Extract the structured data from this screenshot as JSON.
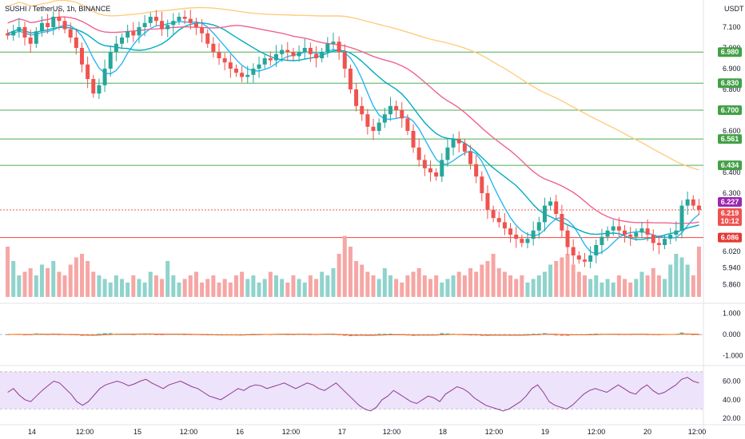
{
  "header": {
    "symbol": "SUSHI / TetherUS, 1h, BINANCE",
    "currency": "USDT"
  },
  "colors": {
    "up": "#26a69a",
    "down": "#ef5350",
    "vol_up": "#8fd3cc",
    "vol_down": "#f6a6a4",
    "ma_fast": "#29b6f6",
    "ma_mid": "#00acc1",
    "ma_slow": "#f06292",
    "ma_long": "#ffcc80",
    "support_line": "#4caf50",
    "resistance_line": "#f44336",
    "rsi_line": "#8e3a8e",
    "rsi_band": "#ede3fb"
  },
  "chart_data": [
    {
      "type": "candlestick",
      "x_labels": [
        "14",
        "12:00",
        "15",
        "12:00",
        "16",
        "12:00",
        "17",
        "12:00",
        "18",
        "12:00",
        "19",
        "12:00",
        "20",
        "12:00"
      ],
      "price_ticks": [
        "7.100",
        "7.000",
        "6.900",
        "6.800",
        "6.600",
        "6.400",
        "6.300",
        "6.020",
        "5.940",
        "5.860"
      ],
      "ylim": [
        5.8,
        7.2
      ],
      "horizontal_levels": [
        {
          "value": 6.98,
          "label": "6.980",
          "kind": "green"
        },
        {
          "value": 6.83,
          "label": "6.830",
          "kind": "green"
        },
        {
          "value": 6.7,
          "label": "6.700",
          "kind": "green"
        },
        {
          "value": 6.561,
          "label": "6.561",
          "kind": "green"
        },
        {
          "value": 6.434,
          "label": "6.434",
          "kind": "green"
        },
        {
          "value": 6.086,
          "label": "6.086",
          "kind": "red"
        }
      ],
      "current_price": {
        "value": 6.219,
        "label": "6.219",
        "countdown": "10:12"
      },
      "ma_tag": {
        "value": 6.227,
        "label": "6.227"
      },
      "price_path": [
        7.06,
        7.08,
        7.1,
        7.05,
        7.02,
        7.08,
        7.12,
        7.1,
        7.15,
        7.13,
        7.09,
        7.05,
        7.0,
        6.92,
        6.85,
        6.78,
        6.82,
        6.9,
        6.98,
        7.02,
        7.05,
        7.08,
        7.06,
        7.1,
        7.12,
        7.15,
        7.13,
        7.09,
        7.11,
        7.13,
        7.15,
        7.14,
        7.12,
        7.1,
        7.07,
        7.02,
        6.98,
        6.95,
        6.93,
        6.9,
        6.88,
        6.86,
        6.87,
        6.9,
        6.92,
        6.95,
        6.94,
        6.97,
        6.99,
        6.98,
        6.96,
        6.98,
        7.0,
        6.97,
        6.95,
        6.98,
        7.02,
        7.03,
        6.98,
        6.9,
        6.8,
        6.72,
        6.68,
        6.62,
        6.6,
        6.64,
        6.68,
        6.72,
        6.7,
        6.66,
        6.6,
        6.52,
        6.46,
        6.42,
        6.4,
        6.38,
        6.46,
        6.52,
        6.56,
        6.54,
        6.5,
        6.44,
        6.38,
        6.3,
        6.22,
        6.18,
        6.16,
        6.13,
        6.1,
        6.08,
        6.06,
        6.08,
        6.12,
        6.16,
        6.24,
        6.26,
        6.2,
        6.12,
        6.04,
        6.0,
        5.98,
        5.97,
        6.0,
        6.05,
        6.09,
        6.12,
        6.14,
        6.12,
        6.1,
        6.09,
        6.11,
        6.13,
        6.1,
        6.06,
        6.05,
        6.08,
        6.1,
        6.12,
        6.24,
        6.27,
        6.24,
        6.22
      ]
    },
    {
      "type": "bar",
      "name": "volume",
      "note": "relative heights 0-1",
      "values": [
        0.7,
        0.5,
        0.3,
        0.35,
        0.4,
        0.3,
        0.45,
        0.4,
        0.5,
        0.35,
        0.3,
        0.45,
        0.55,
        0.6,
        0.5,
        0.35,
        0.3,
        0.25,
        0.2,
        0.3,
        0.25,
        0.2,
        0.3,
        0.25,
        0.2,
        0.35,
        0.3,
        0.25,
        0.5,
        0.3,
        0.2,
        0.25,
        0.3,
        0.35,
        0.2,
        0.25,
        0.3,
        0.2,
        0.25,
        0.2,
        0.3,
        0.35,
        0.25,
        0.3,
        0.2,
        0.25,
        0.35,
        0.3,
        0.25,
        0.2,
        0.3,
        0.25,
        0.2,
        0.3,
        0.25,
        0.35,
        0.3,
        0.4,
        0.6,
        0.85,
        0.7,
        0.5,
        0.45,
        0.35,
        0.3,
        0.25,
        0.4,
        0.3,
        0.25,
        0.2,
        0.3,
        0.35,
        0.4,
        0.3,
        0.25,
        0.3,
        0.2,
        0.25,
        0.3,
        0.35,
        0.3,
        0.4,
        0.35,
        0.45,
        0.5,
        0.6,
        0.4,
        0.35,
        0.3,
        0.25,
        0.3,
        0.2,
        0.25,
        0.3,
        0.35,
        0.45,
        0.5,
        0.55,
        0.6,
        0.45,
        0.35,
        0.3,
        0.25,
        0.3,
        0.2,
        0.25,
        0.2,
        0.3,
        0.25,
        0.2,
        0.25,
        0.35,
        0.3,
        0.4,
        0.3,
        0.25,
        0.45,
        0.6,
        0.55,
        0.45,
        0.3
      ]
    },
    {
      "type": "line",
      "name": "macd",
      "y_ticks": [
        "1.000",
        "0.000",
        "-1.000"
      ],
      "ylim": [
        -1.4,
        1.4
      ]
    },
    {
      "type": "line",
      "name": "rsi",
      "y_ticks": [
        "60.00",
        "40.00",
        "20.00"
      ],
      "ylim": [
        15,
        75
      ],
      "band": [
        30,
        70
      ],
      "values": [
        48,
        52,
        45,
        40,
        38,
        44,
        50,
        55,
        60,
        58,
        52,
        46,
        38,
        34,
        38,
        45,
        52,
        56,
        58,
        60,
        58,
        55,
        57,
        60,
        62,
        58,
        55,
        52,
        56,
        58,
        60,
        57,
        54,
        52,
        48,
        44,
        42,
        40,
        44,
        48,
        52,
        50,
        54,
        56,
        55,
        52,
        54,
        56,
        58,
        55,
        52,
        55,
        58,
        56,
        52,
        50,
        54,
        58,
        52,
        46,
        40,
        34,
        30,
        28,
        32,
        40,
        44,
        50,
        46,
        42,
        38,
        36,
        40,
        44,
        42,
        38,
        46,
        50,
        54,
        52,
        48,
        42,
        38,
        34,
        32,
        30,
        28,
        30,
        34,
        38,
        44,
        52,
        56,
        48,
        38,
        34,
        32,
        30,
        34,
        40,
        46,
        50,
        52,
        50,
        48,
        52,
        56,
        52,
        48,
        46,
        52,
        56,
        50,
        46,
        48,
        52,
        56,
        62,
        64,
        60,
        58
      ]
    }
  ]
}
